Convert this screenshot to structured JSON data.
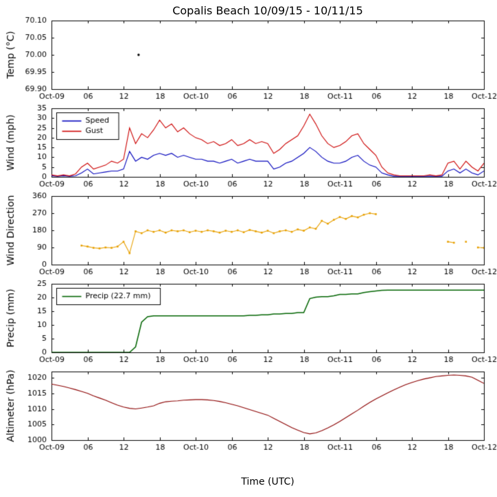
{
  "chart_data": {
    "type": "line",
    "title": "Copalis Beach 10/09/15 - 10/11/15",
    "x_axis": {
      "label": "Time (UTC)",
      "range_hours": [
        0,
        72
      ],
      "tick_interval_hours": 6,
      "tick_labels": [
        "Oct-09",
        "06",
        "12",
        "18",
        "Oct-10",
        "06",
        "12",
        "18",
        "Oct-11",
        "06",
        "12",
        "18",
        "Oct-12"
      ]
    },
    "subplots": [
      {
        "name": "temperature",
        "ylabel": "Temp (°C)",
        "ylim": [
          69.9,
          70.1
        ],
        "yticks": [
          {
            "value": 69.9,
            "label": "69.90"
          },
          {
            "value": 69.95,
            "label": "69.95"
          },
          {
            "value": 70.0,
            "label": "70.00"
          },
          {
            "value": 70.05,
            "label": "70.05"
          },
          {
            "value": 70.1,
            "label": "70.10"
          }
        ],
        "series": [
          {
            "name": "Temp",
            "color": "#000000",
            "type": "points",
            "points": [
              [
                14.5,
                70.0
              ]
            ]
          }
        ]
      },
      {
        "name": "wind",
        "ylabel": "Wind (mph)",
        "ylim": [
          0,
          35
        ],
        "yticks": [
          {
            "value": 0,
            "label": "0"
          },
          {
            "value": 5,
            "label": "5"
          },
          {
            "value": 10,
            "label": "10"
          },
          {
            "value": 15,
            "label": "15"
          },
          {
            "value": 20,
            "label": "20"
          },
          {
            "value": 25,
            "label": "25"
          },
          {
            "value": 30,
            "label": "30"
          },
          {
            "value": 35,
            "label": "35"
          }
        ],
        "legend": {
          "position": "top-left",
          "entries": [
            {
              "label": "Speed",
              "color": "#0000bb"
            },
            {
              "label": "Gust",
              "color": "#cc0000"
            }
          ]
        },
        "series": [
          {
            "name": "Speed",
            "color": "#0000bb",
            "type": "line",
            "x_start": 0,
            "x_step": 1,
            "values": [
              0.5,
              0.3,
              0.5,
              0.3,
              0.5,
              2,
              4,
              1.5,
              2,
              2.5,
              3,
              3,
              4,
              13,
              8,
              10,
              9,
              11,
              12,
              11,
              12,
              10,
              11,
              10,
              9,
              9,
              8,
              8,
              7,
              8,
              9,
              7,
              8,
              9,
              8,
              8,
              8,
              4,
              5,
              7,
              8,
              10,
              12,
              15,
              13,
              10,
              8,
              7,
              7,
              8,
              10,
              11,
              8,
              6,
              5,
              2,
              1,
              0.3,
              0.3,
              0.3,
              0.3,
              0.3,
              0.3,
              0.3,
              0.3,
              0.3,
              3,
              4,
              2,
              4,
              2,
              1,
              3
            ]
          },
          {
            "name": "Gust",
            "color": "#cc0000",
            "type": "line",
            "x_start": 0,
            "x_step": 1,
            "values": [
              1,
              0.5,
              1,
              0.5,
              1.5,
              5,
              7,
              4,
              5,
              6,
              8,
              7,
              9,
              25,
              17,
              22,
              20,
              24,
              29,
              25,
              27,
              23,
              25,
              22,
              20,
              19,
              17,
              18,
              16,
              17,
              19,
              16,
              17,
              19,
              17,
              18,
              17,
              12,
              14,
              17,
              19,
              21,
              26,
              32,
              27,
              21,
              17,
              15,
              16,
              18,
              21,
              22,
              17,
              14,
              11,
              5,
              2,
              1,
              0.5,
              0.5,
              0.5,
              0.5,
              0.5,
              1,
              0.5,
              1,
              7,
              8,
              4,
              8,
              5,
              3,
              7
            ]
          }
        ]
      },
      {
        "name": "wind-direction",
        "ylabel": "Wind Direction",
        "ylim": [
          0,
          360
        ],
        "yticks": [
          {
            "value": 0,
            "label": "0"
          },
          {
            "value": 90,
            "label": "90"
          },
          {
            "value": 180,
            "label": "180"
          },
          {
            "value": 270,
            "label": "270"
          },
          {
            "value": 360,
            "label": "360"
          }
        ],
        "series": [
          {
            "name": "Direction",
            "color": "#e8a000",
            "type": "line",
            "markers": true,
            "x_start": 0,
            "x_step": 1,
            "values": [
              null,
              null,
              null,
              null,
              null,
              100,
              95,
              88,
              85,
              90,
              88,
              95,
              120,
              60,
              175,
              165,
              180,
              172,
              180,
              168,
              180,
              175,
              180,
              170,
              178,
              172,
              180,
              175,
              168,
              178,
              172,
              180,
              170,
              182,
              175,
              168,
              178,
              165,
              175,
              180,
              172,
              185,
              178,
              195,
              188,
              230,
              215,
              235,
              250,
              240,
              255,
              248,
              262,
              270,
              265,
              null,
              null,
              null,
              null,
              null,
              null,
              null,
              null,
              null,
              null,
              null,
              120,
              115,
              null,
              120,
              null,
              90,
              88,
              null
            ]
          }
        ]
      },
      {
        "name": "precip",
        "ylabel": "Precip (mm)",
        "ylim": [
          0,
          25
        ],
        "yticks": [
          {
            "value": 0,
            "label": "0"
          },
          {
            "value": 5,
            "label": "5"
          },
          {
            "value": 10,
            "label": "10"
          },
          {
            "value": 15,
            "label": "15"
          },
          {
            "value": 20,
            "label": "20"
          },
          {
            "value": 25,
            "label": "25"
          }
        ],
        "legend": {
          "position": "top-left",
          "entries": [
            {
              "label": "Precip (22.7 mm)",
              "color": "#006400"
            }
          ]
        },
        "series": [
          {
            "name": "Precip",
            "color": "#006400",
            "type": "line",
            "line_width": 1.5,
            "x_start": 0,
            "x_step": 1,
            "values": [
              0,
              0,
              0,
              0,
              0,
              0,
              0,
              0,
              0,
              0,
              0,
              0,
              0,
              0,
              2,
              11,
              13,
              13.3,
              13.3,
              13.3,
              13.3,
              13.3,
              13.3,
              13.3,
              13.3,
              13.3,
              13.3,
              13.3,
              13.3,
              13.3,
              13.3,
              13.3,
              13.3,
              13.5,
              13.5,
              13.7,
              13.7,
              14,
              14,
              14.2,
              14.2,
              14.5,
              14.5,
              19.6,
              20.1,
              20.3,
              20.3,
              20.6,
              21.1,
              21.1,
              21.3,
              21.3,
              21.8,
              22.1,
              22.4,
              22.6,
              22.7,
              22.7,
              22.7,
              22.7,
              22.7,
              22.7,
              22.7,
              22.7,
              22.7,
              22.7,
              22.7,
              22.7,
              22.7,
              22.7,
              22.7,
              22.7,
              22.7,
              22.7
            ]
          }
        ]
      },
      {
        "name": "altimeter",
        "ylabel": "Altimeter (hPa)",
        "ylim": [
          1000,
          1022
        ],
        "yticks": [
          {
            "value": 1000,
            "label": "1000"
          },
          {
            "value": 1005,
            "label": "1005"
          },
          {
            "value": 1010,
            "label": "1010"
          },
          {
            "value": 1015,
            "label": "1015"
          },
          {
            "value": 1020,
            "label": "1020"
          }
        ],
        "series": [
          {
            "name": "Altimeter",
            "color": "#8b0000",
            "type": "line",
            "x_start": 0,
            "x_step": 1,
            "values": [
              1018,
              1017.6,
              1017.2,
              1016.7,
              1016.2,
              1015.6,
              1015,
              1014.2,
              1013.5,
              1012.8,
              1012,
              1011.2,
              1010.6,
              1010.2,
              1010,
              1010.3,
              1010.6,
              1011,
              1011.8,
              1012.3,
              1012.5,
              1012.6,
              1012.8,
              1012.9,
              1013,
              1013,
              1012.9,
              1012.7,
              1012.4,
              1012,
              1011.5,
              1011,
              1010.4,
              1009.8,
              1009.2,
              1008.6,
              1008,
              1007,
              1006,
              1005,
              1004,
              1003.2,
              1002.4,
              1002,
              1002.3,
              1003,
              1003.9,
              1004.9,
              1006,
              1007.2,
              1008.4,
              1009.6,
              1010.9,
              1012.1,
              1013.2,
              1014.2,
              1015.2,
              1016.1,
              1017,
              1017.8,
              1018.5,
              1019.1,
              1019.6,
              1020,
              1020.4,
              1020.6,
              1020.8,
              1020.9,
              1020.8,
              1020.6,
              1020.2,
              1019.2,
              1018.2
            ]
          }
        ]
      }
    ]
  }
}
